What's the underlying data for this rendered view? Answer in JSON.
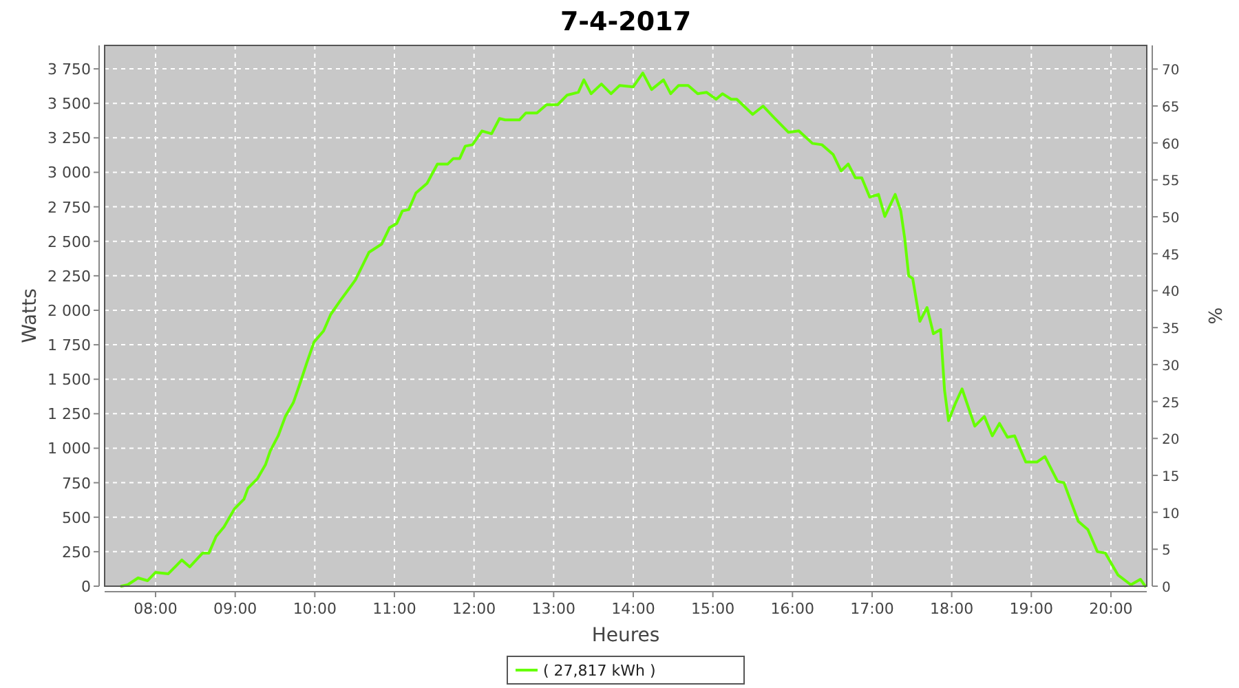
{
  "chart_data": {
    "type": "line",
    "title": "7-4-2017",
    "xlabel": "Heures",
    "ylabel": "Watts",
    "y2label": "%",
    "xlim": [
      7.36,
      20.45
    ],
    "xticks": [
      {
        "value": 8,
        "label": "08:00"
      },
      {
        "value": 9,
        "label": "09:00"
      },
      {
        "value": 10,
        "label": "10:00"
      },
      {
        "value": 11,
        "label": "11:00"
      },
      {
        "value": 12,
        "label": "12:00"
      },
      {
        "value": 13,
        "label": "13:00"
      },
      {
        "value": 14,
        "label": "14:00"
      },
      {
        "value": 15,
        "label": "15:00"
      },
      {
        "value": 16,
        "label": "16:00"
      },
      {
        "value": 17,
        "label": "17:00"
      },
      {
        "value": 18,
        "label": "18:00"
      },
      {
        "value": 19,
        "label": "19:00"
      },
      {
        "value": 20,
        "label": "20:00"
      }
    ],
    "ylim": [
      0,
      3920
    ],
    "yticks": [
      0,
      250,
      500,
      750,
      {
        "value": 1000,
        "label": "1 000"
      },
      {
        "value": 1250,
        "label": "1 250"
      },
      {
        "value": 1500,
        "label": "1 500"
      },
      {
        "value": 1750,
        "label": "1 750"
      },
      {
        "value": 2000,
        "label": "2 000"
      },
      {
        "value": 2250,
        "label": "2 250"
      },
      {
        "value": 2500,
        "label": "2 500"
      },
      {
        "value": 2750,
        "label": "2 750"
      },
      {
        "value": 3000,
        "label": "3 000"
      },
      {
        "value": 3250,
        "label": "3 250"
      },
      {
        "value": 3500,
        "label": "3 500"
      },
      {
        "value": 3750,
        "label": "3 750"
      }
    ],
    "y2lim": [
      0,
      73.2
    ],
    "y2ticks": [
      0,
      5,
      10,
      15,
      20,
      25,
      30,
      35,
      40,
      45,
      50,
      55,
      60,
      65,
      70
    ],
    "grid": true,
    "legend": "bottom",
    "marker": "none",
    "line_style": "solid",
    "series": [
      {
        "name": "( 27,817 kWh )",
        "color": "#66ff00",
        "x": [
          7.57,
          7.65,
          7.78,
          7.9,
          8,
          8.16,
          8.33,
          8.43,
          8.59,
          8.67,
          8.76,
          8.86,
          8.99,
          9.11,
          9.16,
          9.28,
          9.38,
          9.44,
          9.54,
          9.63,
          9.73,
          9.82,
          9.9,
          9.99,
          10.11,
          10.2,
          10.32,
          10.51,
          10.68,
          10.84,
          10.94,
          11.03,
          11.1,
          11.18,
          11.27,
          11.41,
          11.54,
          11.67,
          11.74,
          11.82,
          11.89,
          11.98,
          12.1,
          12.22,
          12.32,
          12.39,
          12.57,
          12.65,
          12.79,
          12.91,
          13.05,
          13.17,
          13.31,
          13.38,
          13.47,
          13.6,
          13.72,
          13.83,
          14,
          14.12,
          14.23,
          14.38,
          14.47,
          14.57,
          14.69,
          14.81,
          14.92,
          15.04,
          15.12,
          15.23,
          15.3,
          15.5,
          15.63,
          15.78,
          15.95,
          16.08,
          16.25,
          16.37,
          16.51,
          16.61,
          16.7,
          16.79,
          16.87,
          16.97,
          17.08,
          17.16,
          17.29,
          17.36,
          17.41,
          17.46,
          17.51,
          17.6,
          17.69,
          17.77,
          17.86,
          17.91,
          17.96,
          18.05,
          18.13,
          18.29,
          18.41,
          18.51,
          18.6,
          18.7,
          18.79,
          18.93,
          19.07,
          19.17,
          19.33,
          19.41,
          19.59,
          19.71,
          19.83,
          19.93,
          20.09,
          20.25,
          20.37,
          20.43
        ],
        "values": [
          0,
          10,
          60,
          40,
          100,
          90,
          190,
          140,
          240,
          240,
          360,
          430,
          560,
          630,
          710,
          780,
          880,
          980,
          1090,
          1230,
          1330,
          1480,
          1620,
          1770,
          1850,
          1970,
          2070,
          2220,
          2420,
          2480,
          2600,
          2630,
          2720,
          2730,
          2850,
          2920,
          3060,
          3060,
          3100,
          3100,
          3190,
          3200,
          3300,
          3280,
          3390,
          3380,
          3380,
          3430,
          3430,
          3490,
          3490,
          3560,
          3580,
          3670,
          3570,
          3640,
          3570,
          3630,
          3620,
          3720,
          3600,
          3670,
          3570,
          3630,
          3630,
          3570,
          3580,
          3530,
          3570,
          3530,
          3530,
          3420,
          3480,
          3390,
          3290,
          3300,
          3210,
          3200,
          3130,
          3010,
          3060,
          2960,
          2960,
          2820,
          2840,
          2680,
          2840,
          2720,
          2520,
          2250,
          2230,
          1920,
          2020,
          1830,
          1860,
          1420,
          1200,
          1330,
          1430,
          1160,
          1230,
          1090,
          1180,
          1080,
          1090,
          900,
          900,
          940,
          760,
          750,
          470,
          410,
          250,
          240,
          80,
          10,
          50,
          0
        ]
      }
    ]
  }
}
